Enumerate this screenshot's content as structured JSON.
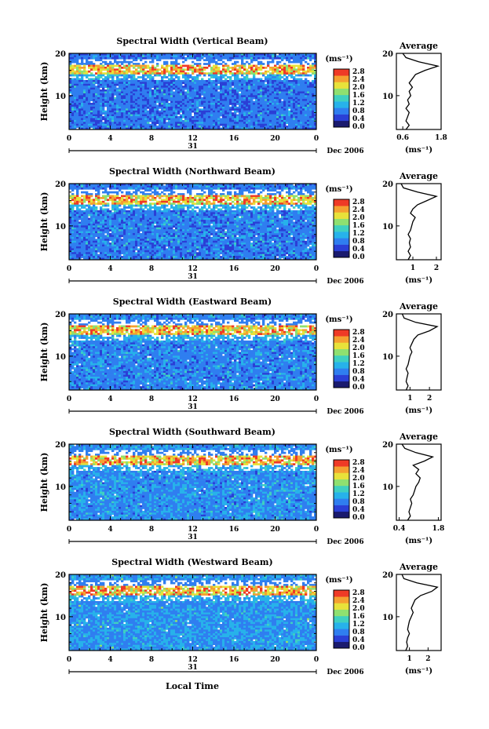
{
  "common": {
    "ylabel": "Height (km)",
    "cbar_unit": "(ms⁻¹)",
    "cbar_ticks": [
      "2.8",
      "2.4",
      "2.0",
      "1.6",
      "1.2",
      "0.8",
      "0.4",
      "0.0"
    ],
    "xticks": [
      "0",
      "4",
      "8",
      "12",
      "16",
      "20",
      "0"
    ],
    "yticks": [
      "20",
      "10"
    ],
    "day_label": "31",
    "date_label": "Dec 2006",
    "avg_title": "Average",
    "avg_unit": "(ms⁻¹)",
    "xlabel": "Local Time",
    "colors": [
      "#1a1a6e",
      "#2a3fd6",
      "#2f7ef0",
      "#27b2ea",
      "#3fd0c0",
      "#8fe070",
      "#e8e23a",
      "#f5a030",
      "#ef3a26"
    ]
  },
  "chart_data": [
    {
      "type": "heatmap",
      "title": "Spectral Width (Vertical Beam)",
      "xlim": [
        0,
        24
      ],
      "ylim": [
        2,
        20
      ],
      "clim": [
        0.0,
        2.8
      ],
      "avg_ticks": [
        "0.6",
        "1.8"
      ],
      "avg_xlim": [
        0.4,
        1.8
      ],
      "profile": [
        [
          0.7,
          2
        ],
        [
          0.8,
          3
        ],
        [
          0.7,
          4
        ],
        [
          0.75,
          5
        ],
        [
          0.8,
          6
        ],
        [
          0.7,
          7
        ],
        [
          0.8,
          8
        ],
        [
          0.75,
          9
        ],
        [
          0.85,
          10
        ],
        [
          0.8,
          11
        ],
        [
          0.9,
          12
        ],
        [
          0.8,
          13
        ],
        [
          0.9,
          14
        ],
        [
          1.0,
          15
        ],
        [
          1.3,
          16
        ],
        [
          1.7,
          17
        ],
        [
          1.1,
          18
        ],
        [
          0.7,
          19
        ],
        [
          0.6,
          20
        ]
      ]
    },
    {
      "type": "heatmap",
      "title": "Spectral Width (Northward Beam)",
      "xlim": [
        0,
        24
      ],
      "ylim": [
        2,
        20
      ],
      "clim": [
        0.0,
        2.8
      ],
      "avg_ticks": [
        "1",
        "2"
      ],
      "avg_xlim": [
        0.3,
        2.2
      ],
      "profile": [
        [
          0.8,
          2
        ],
        [
          0.9,
          3
        ],
        [
          0.8,
          4
        ],
        [
          0.9,
          5
        ],
        [
          0.85,
          6
        ],
        [
          0.9,
          7
        ],
        [
          0.8,
          8
        ],
        [
          0.9,
          9
        ],
        [
          0.95,
          10
        ],
        [
          1.0,
          11
        ],
        [
          1.1,
          12
        ],
        [
          0.9,
          13
        ],
        [
          1.0,
          14
        ],
        [
          1.2,
          15
        ],
        [
          1.6,
          16
        ],
        [
          2.0,
          17
        ],
        [
          1.2,
          18
        ],
        [
          0.6,
          19
        ],
        [
          0.5,
          20
        ]
      ]
    },
    {
      "type": "heatmap",
      "title": "Spectral Width (Eastward Beam)",
      "xlim": [
        0,
        24
      ],
      "ylim": [
        2,
        20
      ],
      "clim": [
        0.0,
        2.8
      ],
      "avg_ticks": [
        "1",
        "2"
      ],
      "avg_xlim": [
        0.3,
        2.6
      ],
      "profile": [
        [
          0.8,
          2
        ],
        [
          0.9,
          3
        ],
        [
          0.8,
          4
        ],
        [
          0.85,
          5
        ],
        [
          0.9,
          6
        ],
        [
          0.8,
          7
        ],
        [
          0.9,
          8
        ],
        [
          0.95,
          9
        ],
        [
          1.0,
          10
        ],
        [
          1.1,
          11
        ],
        [
          1.0,
          12
        ],
        [
          1.1,
          13
        ],
        [
          1.2,
          14
        ],
        [
          1.4,
          15
        ],
        [
          2.0,
          16
        ],
        [
          2.4,
          17
        ],
        [
          1.3,
          18
        ],
        [
          0.7,
          19
        ],
        [
          0.6,
          20
        ]
      ]
    },
    {
      "type": "heatmap",
      "title": "Spectral Width (Southward Beam)",
      "xlim": [
        0,
        24
      ],
      "ylim": [
        2,
        20
      ],
      "clim": [
        0.0,
        2.8
      ],
      "avg_ticks": [
        "0.4",
        "1.8"
      ],
      "avg_xlim": [
        0.3,
        1.9
      ],
      "profile": [
        [
          0.7,
          2
        ],
        [
          0.8,
          3
        ],
        [
          0.75,
          4
        ],
        [
          0.8,
          5
        ],
        [
          0.85,
          6
        ],
        [
          0.8,
          7
        ],
        [
          0.9,
          8
        ],
        [
          0.95,
          9
        ],
        [
          1.0,
          10
        ],
        [
          1.1,
          11
        ],
        [
          1.15,
          12
        ],
        [
          1.0,
          13
        ],
        [
          1.1,
          14
        ],
        [
          0.9,
          15
        ],
        [
          1.3,
          16
        ],
        [
          1.6,
          17
        ],
        [
          1.0,
          18
        ],
        [
          0.6,
          19
        ],
        [
          0.5,
          20
        ]
      ]
    },
    {
      "type": "heatmap",
      "title": "Spectral Width (Westward Beam)",
      "xlim": [
        0,
        24
      ],
      "ylim": [
        2,
        20
      ],
      "clim": [
        0.0,
        2.8
      ],
      "avg_ticks": [
        "1",
        "2"
      ],
      "avg_xlim": [
        0.3,
        2.7
      ],
      "profile": [
        [
          0.8,
          2
        ],
        [
          0.9,
          3
        ],
        [
          0.85,
          4
        ],
        [
          0.9,
          5
        ],
        [
          1.0,
          6
        ],
        [
          0.9,
          7
        ],
        [
          0.95,
          8
        ],
        [
          1.0,
          9
        ],
        [
          1.1,
          10
        ],
        [
          1.2,
          11
        ],
        [
          1.1,
          12
        ],
        [
          1.2,
          13
        ],
        [
          1.3,
          14
        ],
        [
          1.6,
          15
        ],
        [
          2.2,
          16
        ],
        [
          2.5,
          17
        ],
        [
          1.4,
          18
        ],
        [
          0.7,
          19
        ],
        [
          0.6,
          20
        ]
      ]
    }
  ]
}
